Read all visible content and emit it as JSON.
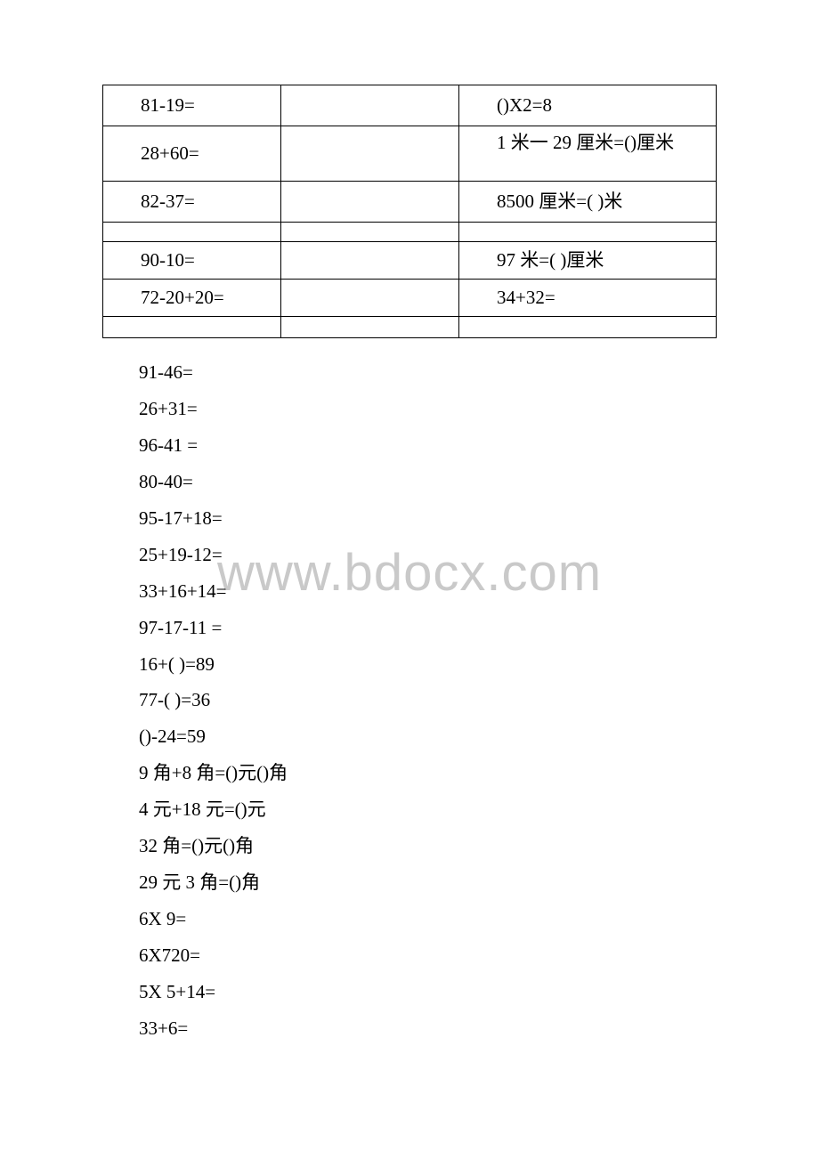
{
  "watermark": "www.bdocx.com",
  "table": {
    "rows": [
      {
        "left": "81-19=",
        "right": "()X2=8",
        "cls": "row-normal"
      },
      {
        "left": "28+60=",
        "right": "1 米一 29 厘米=()厘米",
        "cls": "row-tall",
        "multiline": true
      },
      {
        "left": "82-37=",
        "right": "8500 厘米=( )米",
        "cls": "row-normal"
      },
      {
        "left": "",
        "right": "",
        "cls": "row-short"
      },
      {
        "left": "90-10=",
        "right": "97 米=( )厘米",
        "cls": "row-h38"
      },
      {
        "left": "72-20+20=",
        "right": "34+32=",
        "cls": "row-h38"
      },
      {
        "left": "",
        "right": "",
        "cls": "row-h24"
      }
    ]
  },
  "list": [
    "91-46=",
    "26+31=",
    "96-41 =",
    "80-40=",
    "95-17+18=",
    "25+19-12=",
    "33+16+14=",
    "97-17-11 =",
    "16+( )=89",
    "77-( )=36",
    "()-24=59",
    "9 角+8 角=()元()角",
    "4 元+18 元=()元",
    "32 角=()元()角",
    "29 元 3 角=()角",
    "6X 9=",
    "6X720=",
    "5X 5+14=",
    "33+6="
  ]
}
